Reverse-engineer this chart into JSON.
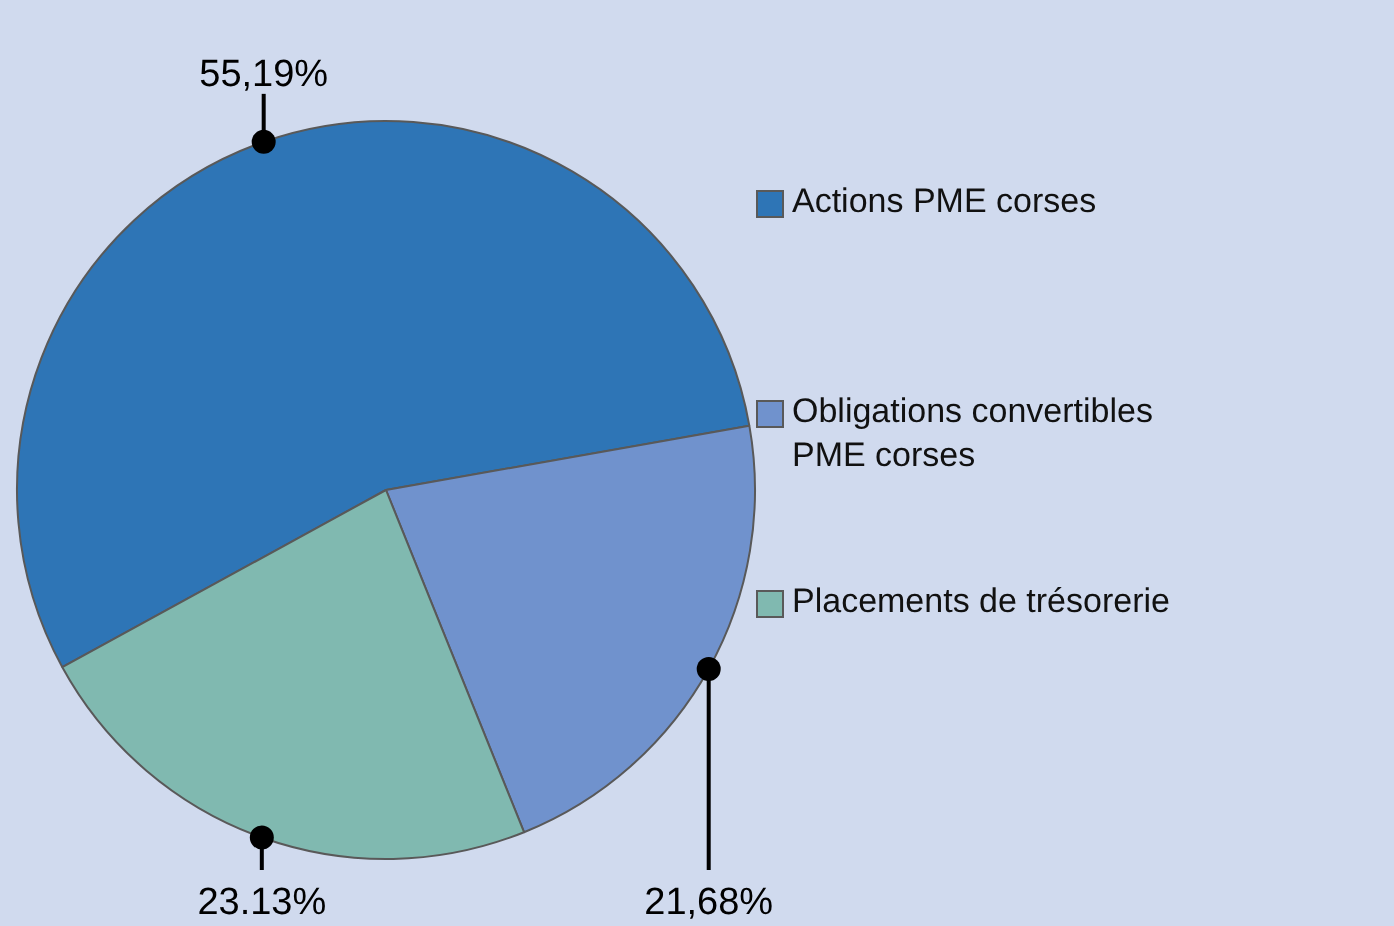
{
  "chart_data": {
    "type": "pie",
    "categories": [
      "Actions PME corses",
      "Obligations convertibles PME corses",
      "Placements de trésorerie"
    ],
    "values": [
      55.19,
      21.68,
      23.13
    ],
    "value_labels": [
      "55,19%",
      "21,68%",
      "23.13%"
    ],
    "colors": [
      "#2e75b6",
      "#7092cd",
      "#80b9b0"
    ],
    "legend": "right"
  }
}
